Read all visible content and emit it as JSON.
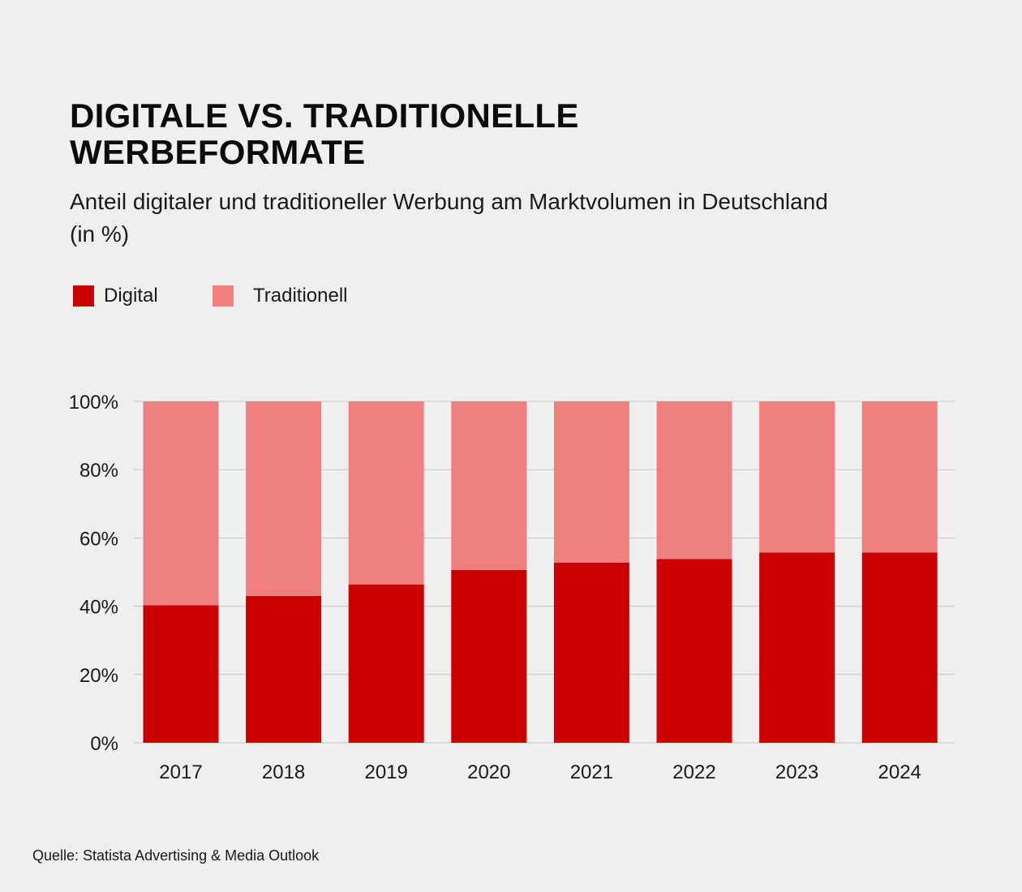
{
  "title_line1": "DIGITALE VS. TRADITIONELLE",
  "title_line2": "WERBEFORMATE",
  "subtitle": "Anteil digitaler und traditioneller Werbung am Marktvolumen in Deutschland (in %)",
  "source": "Quelle: Statista Advertising & Media Outlook",
  "colors": {
    "digital": "#cc0000",
    "traditional": "#f08080",
    "grid": "#c8c8c8",
    "background": "#f0efef"
  },
  "chart_data": {
    "type": "bar",
    "stacked": true,
    "title": "DIGITALE VS. TRADITIONELLE WERBEFORMATE",
    "subtitle": "Anteil digitaler und traditioneller Werbung am Marktvolumen in Deutschland (in %)",
    "categories": [
      "2017",
      "2018",
      "2019",
      "2020",
      "2021",
      "2022",
      "2023",
      "2024"
    ],
    "series": [
      {
        "name": "Digital",
        "values": [
          40.3,
          43.0,
          46.4,
          50.6,
          52.8,
          53.8,
          55.7,
          55.7
        ]
      },
      {
        "name": "Traditionell",
        "values": [
          59.7,
          57.0,
          53.6,
          49.4,
          47.2,
          46.2,
          44.3,
          44.3
        ]
      }
    ],
    "ylim": [
      0,
      100
    ],
    "yticks": [
      0,
      20,
      40,
      60,
      80,
      100
    ],
    "ytick_labels": [
      "0%",
      "20%",
      "40%",
      "60%",
      "80%",
      "100%"
    ],
    "legend_position": "top-left",
    "grid": true,
    "xlabel": "",
    "ylabel": ""
  }
}
